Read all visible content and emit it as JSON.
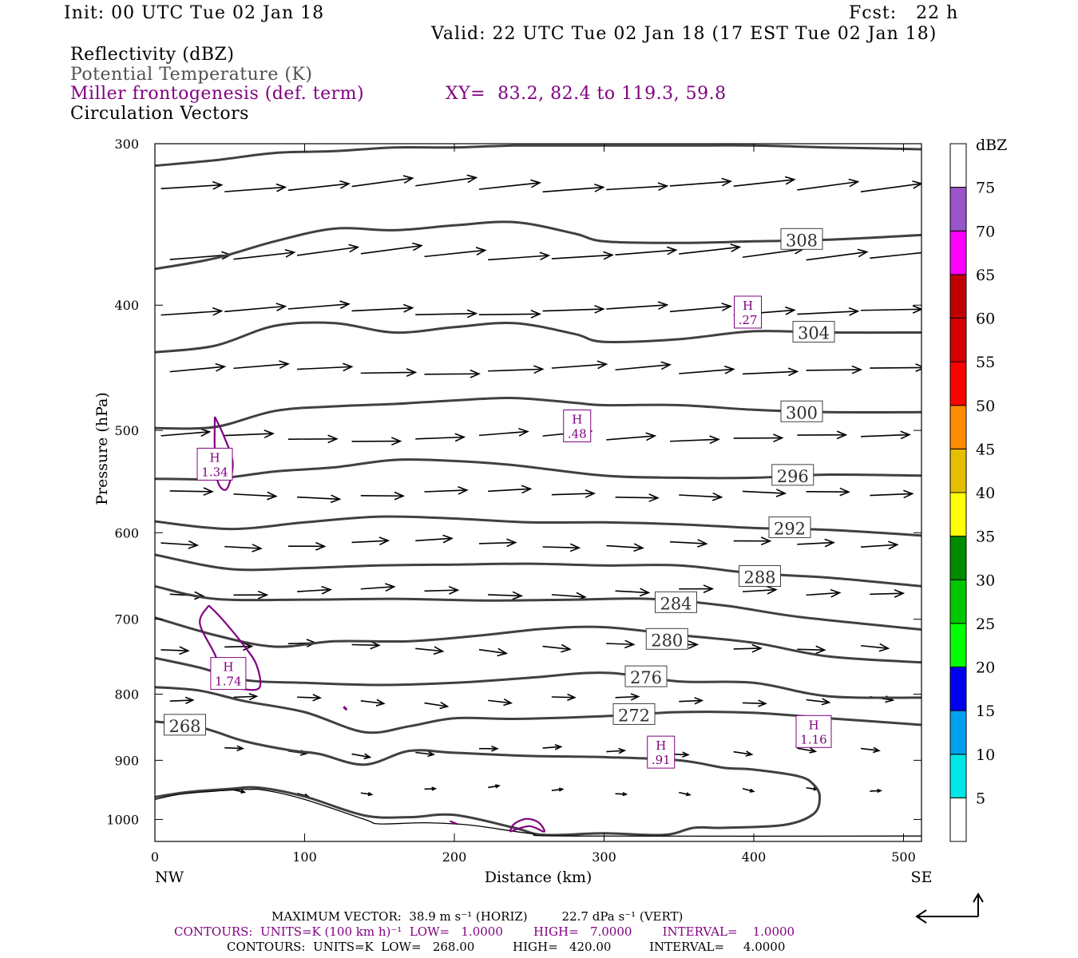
{
  "header": {
    "init": "Init: 00 UTC Tue 02 Jan 18",
    "fcst": "Fcst:   22 h",
    "valid": "Valid: 22 UTC Tue 02 Jan 18 (17 EST Tue 02 Jan 18)"
  },
  "fields": {
    "reflectivity": "Reflectivity (dBZ)",
    "theta": "Potential Temperature (K)",
    "miller": "Miller frontogenesis (def. term)",
    "xy": "XY=  83.2, 82.4 to 119.3, 59.8",
    "vectors": "Circulation Vectors"
  },
  "colors": {
    "theta_contour": "#404040",
    "frontogenesis": "#800080",
    "vectors": "#000000",
    "terrain": "#000000"
  },
  "footer": {
    "max_vector": "MAXIMUM VECTOR:  38.9 m s⁻¹ (HORIZ)         22.7 dPa s⁻¹ (VERT)",
    "contours_purple": "CONTOURS:  UNITS=K (100 km h)⁻¹  LOW=   1.0000        HIGH=   7.0000        INTERVAL=    1.0000",
    "contours_black": "CONTOURS:  UNITS=K  LOW=   268.00          HIGH=   420.00          INTERVAL=     4.0000"
  },
  "chart_data": {
    "type": "cross-section",
    "xlabel": "Distance (km)",
    "ylabel": "Pressure (hPa)",
    "xlim": [
      0,
      512
    ],
    "ylim": [
      1040,
      300
    ],
    "y_scale": "log",
    "x_ticks": [
      "0",
      "100",
      "200",
      "300",
      "400",
      "500"
    ],
    "y_ticks": [
      "300",
      "400",
      "500",
      "600",
      "700",
      "800",
      "900",
      "1000"
    ],
    "x_end_labels": [
      "NW",
      "SE"
    ],
    "colorbar": {
      "label": "dBZ",
      "levels": [
        "5",
        "10",
        "15",
        "20",
        "25",
        "30",
        "35",
        "40",
        "45",
        "50",
        "55",
        "60",
        "65",
        "70",
        "75"
      ],
      "colors": [
        "#ffffff",
        "#00e6e6",
        "#00a0f0",
        "#0000f0",
        "#00ff00",
        "#00c800",
        "#008c00",
        "#ffff00",
        "#e6be00",
        "#ff8c00",
        "#ff0000",
        "#d60000",
        "#c00000",
        "#ff00ff",
        "#9955c9"
      ]
    },
    "theta_contours": [
      {
        "level": 268,
        "label": "268",
        "points": [
          [
            0,
            961
          ],
          [
            20,
            953
          ],
          [
            50,
            947
          ],
          [
            70,
            945
          ],
          [
            100,
            960
          ],
          [
            140,
            993
          ],
          [
            170,
            996
          ],
          [
            200,
            992
          ],
          [
            240,
            1015
          ],
          [
            260,
            1028
          ],
          [
            300,
            1025
          ],
          [
            340,
            1028
          ],
          [
            360,
            1015
          ],
          [
            380,
            1015
          ],
          [
            420,
            1010
          ],
          [
            440,
            990
          ],
          [
            444,
            960
          ],
          [
            440,
            940
          ],
          [
            430,
            926
          ],
          [
            400,
            915
          ],
          [
            380,
            912
          ],
          [
            350,
            900
          ],
          [
            300,
            895
          ],
          [
            250,
            893
          ],
          [
            200,
            888
          ],
          [
            170,
            885
          ],
          [
            140,
            907
          ],
          [
            110,
            890
          ],
          [
            90,
            884
          ],
          [
            60,
            870
          ],
          [
            40,
            855
          ],
          [
            25,
            846
          ],
          [
            0,
            840
          ]
        ],
        "label_at": [
          20,
          846
        ]
      },
      {
        "level": 272,
        "label": "272",
        "points": [
          [
            0,
            790
          ],
          [
            30,
            795
          ],
          [
            60,
            810
          ],
          [
            100,
            826
          ],
          [
            140,
            856
          ],
          [
            170,
            847
          ],
          [
            200,
            835
          ],
          [
            240,
            836
          ],
          [
            300,
            832
          ],
          [
            350,
            826
          ],
          [
            400,
            827
          ],
          [
            450,
            835
          ],
          [
            512,
            845
          ]
        ],
        "label_at": [
          320,
          830
        ]
      },
      {
        "level": 276,
        "label": "276",
        "points": [
          [
            0,
            750
          ],
          [
            30,
            763
          ],
          [
            60,
            780
          ],
          [
            100,
            784
          ],
          [
            150,
            787
          ],
          [
            200,
            784
          ],
          [
            250,
            777
          ],
          [
            300,
            770
          ],
          [
            350,
            782
          ],
          [
            400,
            784
          ],
          [
            450,
            803
          ],
          [
            512,
            805
          ]
        ],
        "label_at": [
          328,
          776
        ]
      },
      {
        "level": 280,
        "label": "280",
        "points": [
          [
            0,
            698
          ],
          [
            40,
            720
          ],
          [
            80,
            735
          ],
          [
            120,
            728
          ],
          [
            170,
            728
          ],
          [
            220,
            720
          ],
          [
            260,
            712
          ],
          [
            300,
            710
          ],
          [
            350,
            720
          ],
          [
            400,
            730
          ],
          [
            450,
            748
          ],
          [
            512,
            756
          ]
        ],
        "label_at": [
          342,
          726
        ]
      },
      {
        "level": 284,
        "label": "284",
        "points": [
          [
            0,
            660
          ],
          [
            40,
            675
          ],
          [
            100,
            676
          ],
          [
            160,
            675
          ],
          [
            220,
            677
          ],
          [
            280,
            676
          ],
          [
            330,
            675
          ],
          [
            380,
            683
          ],
          [
            430,
            697
          ],
          [
            512,
            713
          ]
        ],
        "label_at": [
          348,
          680
        ]
      },
      {
        "level": 288,
        "label": "288",
        "points": [
          [
            0,
            624
          ],
          [
            50,
            640
          ],
          [
            100,
            639
          ],
          [
            150,
            636
          ],
          [
            200,
            635
          ],
          [
            250,
            634
          ],
          [
            300,
            636
          ],
          [
            350,
            636
          ],
          [
            400,
            645
          ],
          [
            450,
            650
          ],
          [
            512,
            660
          ]
        ],
        "label_at": [
          404,
          649
        ]
      },
      {
        "level": 292,
        "label": "292",
        "points": [
          [
            0,
            588
          ],
          [
            50,
            596
          ],
          [
            100,
            589
          ],
          [
            150,
            583
          ],
          [
            200,
            585
          ],
          [
            250,
            589
          ],
          [
            300,
            589
          ],
          [
            350,
            591
          ],
          [
            400,
            595
          ],
          [
            450,
            597
          ],
          [
            512,
            603
          ]
        ],
        "label_at": [
          424,
          595
        ]
      },
      {
        "level": 296,
        "label": "296",
        "points": [
          [
            0,
            545
          ],
          [
            40,
            545
          ],
          [
            80,
            538
          ],
          [
            120,
            534
          ],
          [
            160,
            527
          ],
          [
            200,
            528
          ],
          [
            240,
            532
          ],
          [
            300,
            542
          ],
          [
            350,
            544
          ],
          [
            400,
            544
          ],
          [
            450,
            541
          ],
          [
            512,
            542
          ]
        ],
        "label_at": [
          426,
          542
        ]
      },
      {
        "level": 300,
        "label": "300",
        "points": [
          [
            0,
            498
          ],
          [
            40,
            497
          ],
          [
            80,
            483
          ],
          [
            120,
            479
          ],
          [
            160,
            477
          ],
          [
            200,
            474
          ],
          [
            240,
            472
          ],
          [
            280,
            476
          ],
          [
            300,
            478
          ],
          [
            350,
            478
          ],
          [
            400,
            482
          ],
          [
            450,
            484
          ],
          [
            512,
            484
          ]
        ],
        "label_at": [
          432,
          484
        ]
      },
      {
        "level": 304,
        "label": "304",
        "points": [
          [
            0,
            435
          ],
          [
            40,
            430
          ],
          [
            80,
            415
          ],
          [
            120,
            413
          ],
          [
            160,
            420
          ],
          [
            200,
            416
          ],
          [
            240,
            413
          ],
          [
            280,
            421
          ],
          [
            300,
            427
          ],
          [
            350,
            425
          ],
          [
            400,
            419
          ],
          [
            450,
            420
          ],
          [
            512,
            420
          ]
        ],
        "label_at": [
          440,
          420
        ]
      },
      {
        "level": 308,
        "label": "308",
        "points": [
          [
            0,
            375
          ],
          [
            40,
            368
          ],
          [
            80,
            357
          ],
          [
            120,
            349
          ],
          [
            160,
            350
          ],
          [
            200,
            347
          ],
          [
            240,
            345
          ],
          [
            280,
            352
          ],
          [
            300,
            357
          ],
          [
            350,
            358
          ],
          [
            400,
            357
          ],
          [
            450,
            356
          ],
          [
            512,
            353
          ]
        ],
        "label_at": [
          432,
          356
        ]
      },
      {
        "level": 312,
        "label": "",
        "points": [
          [
            0,
            312
          ],
          [
            40,
            309
          ],
          [
            80,
            305
          ],
          [
            120,
            304
          ],
          [
            160,
            302
          ],
          [
            200,
            302
          ],
          [
            240,
            301
          ],
          [
            300,
            301
          ],
          [
            350,
            301
          ],
          [
            400,
            301
          ],
          [
            450,
            302
          ],
          [
            512,
            303
          ]
        ],
        "label_at": null
      }
    ],
    "theta_labels": [
      "268",
      "272",
      "276",
      "280",
      "284",
      "288",
      "292",
      "296",
      "300",
      "304",
      "308"
    ],
    "frontogenesis_maxima": [
      {
        "label": "H",
        "value": "1.34",
        "x": 40,
        "p": 531
      },
      {
        "label": "H",
        "value": "1.74",
        "x": 49,
        "p": 771
      },
      {
        "label": "H",
        "value": ".48",
        "x": 282,
        "p": 496
      },
      {
        "label": "H",
        "value": ".27",
        "x": 396,
        "p": 405
      },
      {
        "label": "H",
        "value": ".91",
        "x": 338,
        "p": 887
      },
      {
        "label": "H",
        "value": "1.16",
        "x": 440,
        "p": 855
      }
    ],
    "vector_rows": [
      {
        "p": 325,
        "u": 1.0,
        "w": 0.1
      },
      {
        "p": 367,
        "u": 1.0,
        "w": 0.1
      },
      {
        "p": 405,
        "u": 1.0,
        "w": 0.05
      },
      {
        "p": 450,
        "u": 0.9,
        "w": 0.05
      },
      {
        "p": 507,
        "u": 0.8,
        "w": 0.05
      },
      {
        "p": 560,
        "u": 0.7,
        "w": 0.0
      },
      {
        "p": 612,
        "u": 0.6,
        "w": 0.0
      },
      {
        "p": 667,
        "u": 0.55,
        "w": 0.0
      },
      {
        "p": 735,
        "u": 0.45,
        "w": -0.05
      },
      {
        "p": 808,
        "u": 0.38,
        "w": -0.05
      },
      {
        "p": 885,
        "u": 0.3,
        "w": -0.05
      },
      {
        "p": 950,
        "u": 0.18,
        "w": -0.05
      }
    ],
    "legend_lines": [
      "Reflectivity (dBZ)",
      "Potential Temperature (K)",
      "Miller frontogenesis (def. term)",
      "Circulation Vectors"
    ]
  }
}
